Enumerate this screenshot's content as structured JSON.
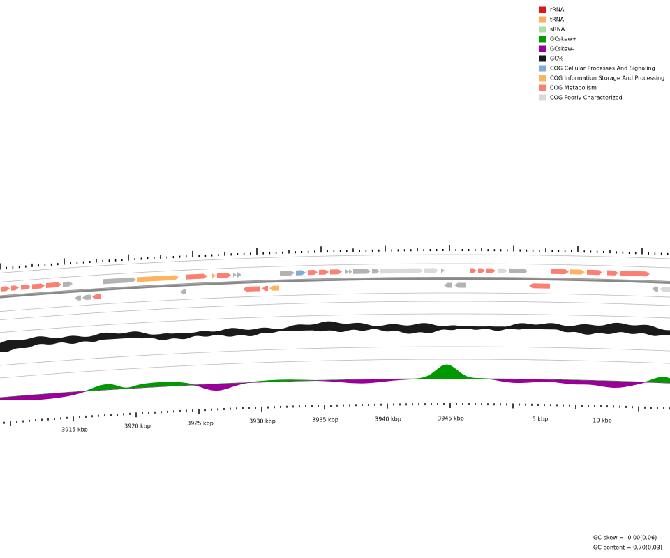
{
  "legend": [
    {
      "label": "rRNA",
      "color": "#d7191c"
    },
    {
      "label": "tRNA",
      "color": "#fdae61"
    },
    {
      "label": "sRNA",
      "color": "#abdda4"
    },
    {
      "label": "GCskew+",
      "color": "#009900"
    },
    {
      "label": "GCskew-",
      "color": "#990099"
    },
    {
      "label": "GC%",
      "color": "#1a1a1a"
    },
    {
      "label": "COG Cellular Processes And Signaling",
      "color": "#7fadd3"
    },
    {
      "label": "COG Information Storage And Processing",
      "color": "#fdb462"
    },
    {
      "label": "COG Metabolism",
      "color": "#fb8072"
    },
    {
      "label": "COG Poorly Characterized",
      "color": "#d9d9d9"
    }
  ],
  "ruler_labels": [
    "3915 kbp",
    "3920 kbp",
    "3925 kbp",
    "3930 kbp",
    "3935 kbp",
    "3940 kbp",
    "3945 kbp",
    "5 kbp",
    "10 kbp"
  ],
  "stats": {
    "gc_skew": "GC-skew = -0.00(0.06)",
    "gc_content": "GC-content = 0.70(0.03)"
  }
}
